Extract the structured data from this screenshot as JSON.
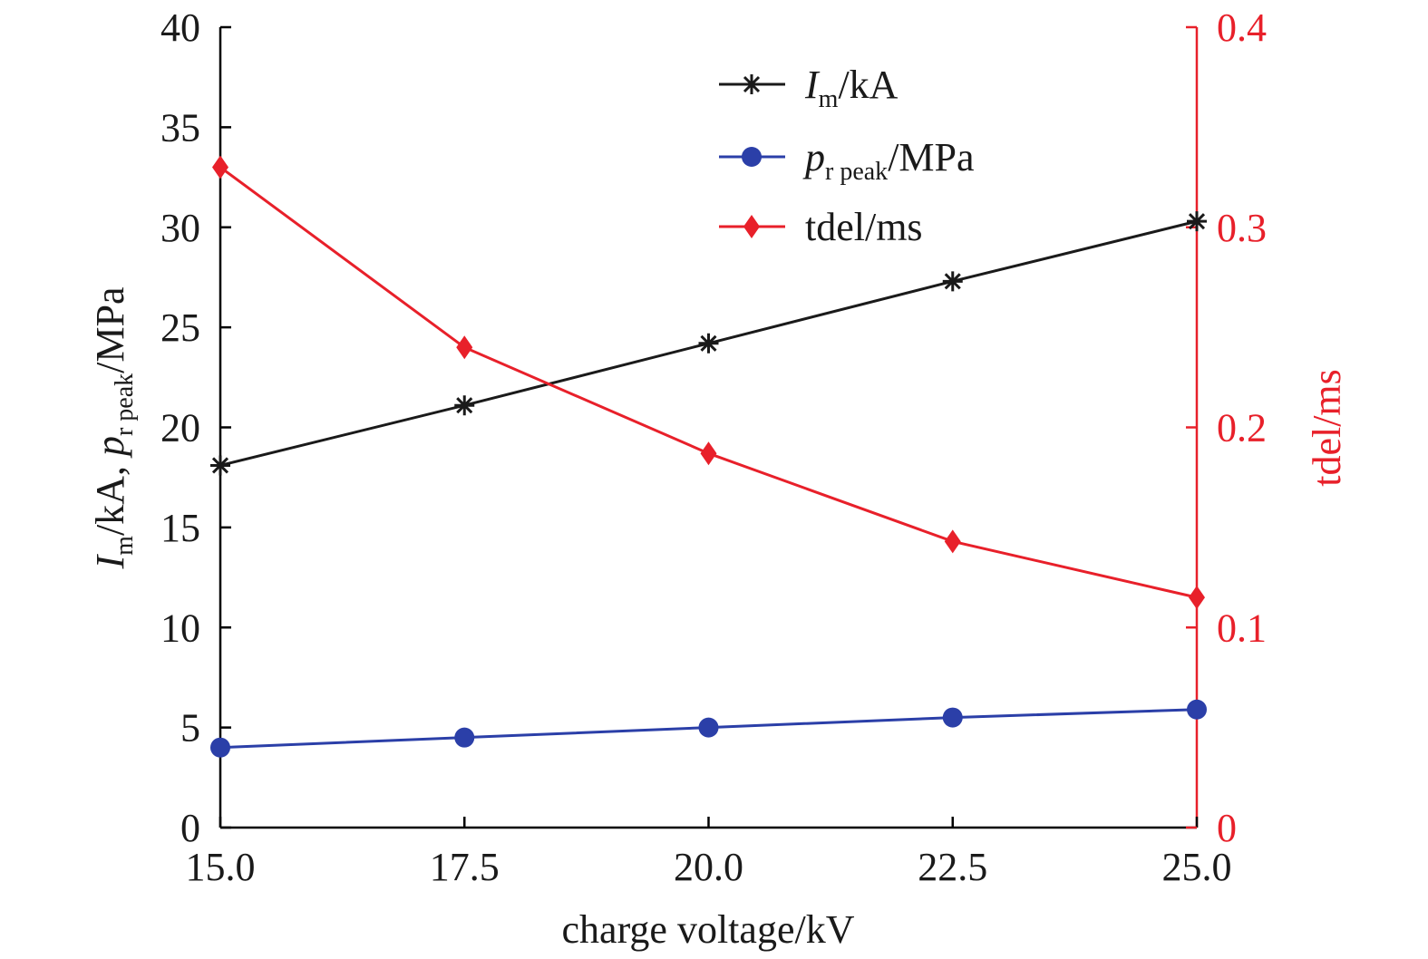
{
  "chart_data": {
    "type": "line",
    "x_label": "charge voltage/kV",
    "y_label_left": "I_m/kA, p_r peak/MPa",
    "y_label_left_parts": {
      "sym1": "I",
      "sub1": "m",
      "mid": "/kA, ",
      "sym2": "p",
      "sub2": "r peak",
      "end": "/MPa"
    },
    "y_label_right": "tdel/ms",
    "x_range": [
      15.0,
      25.0
    ],
    "y_left_range": [
      0,
      40
    ],
    "y_right_range": [
      0,
      0.4
    ],
    "x_ticks": [
      "15.0",
      "17.5",
      "20.0",
      "22.5",
      "25.0"
    ],
    "y_left_ticks": [
      "0",
      "5",
      "10",
      "15",
      "20",
      "25",
      "30",
      "35",
      "40"
    ],
    "y_right_ticks": [
      "0",
      "0.1",
      "0.2",
      "0.3",
      "0.4"
    ],
    "legend_position": "top-center",
    "x": [
      15.0,
      17.5,
      20.0,
      22.5,
      25.0
    ],
    "series": [
      {
        "key": "im",
        "name": "I_m/kA",
        "name_parts": {
          "sym": "I",
          "sub": "m",
          "unit": "/kA"
        },
        "axis": "left",
        "marker": "asterisk",
        "color": "#1a1a1a",
        "values": [
          18.1,
          21.1,
          24.2,
          27.3,
          30.3
        ]
      },
      {
        "key": "pr",
        "name": "p_r peak/MPa",
        "name_parts": {
          "sym": "p",
          "sub": "r peak",
          "unit": "/MPa"
        },
        "axis": "left",
        "marker": "circle",
        "color": "#2b3fa8",
        "values": [
          4.0,
          4.5,
          5.0,
          5.5,
          5.9
        ]
      },
      {
        "key": "tdel",
        "name": "tdel/ms",
        "name_parts": {
          "sym": "",
          "sub": "",
          "unit": "tdel/ms"
        },
        "axis": "right",
        "marker": "diamond",
        "color": "#e8202a",
        "values": [
          0.33,
          0.24,
          0.187,
          0.143,
          0.115
        ]
      }
    ]
  }
}
